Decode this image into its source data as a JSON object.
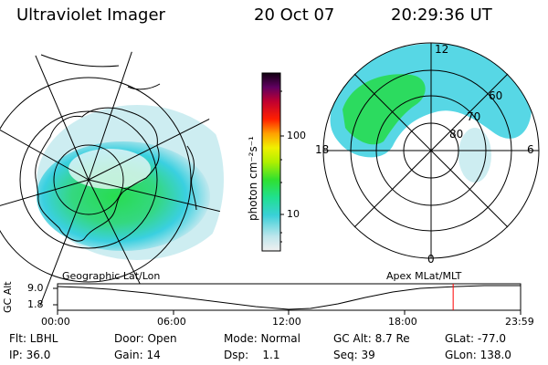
{
  "header": {
    "title": "Ultraviolet Imager",
    "date": "20 Oct 07",
    "time": "20:29:36 UT"
  },
  "colorbar": {
    "label": "photon cm⁻²s⁻¹",
    "ticks": [
      "100",
      "10"
    ]
  },
  "left_panel": {
    "caption": "Geographic Lat/Lon"
  },
  "right_panel": {
    "caption": "Apex MLat/MLT",
    "mlt_labels": {
      "top": "12",
      "bottom": "0",
      "left": "18",
      "right": "6"
    },
    "lat_labels": [
      "60",
      "70",
      "80"
    ]
  },
  "timeline": {
    "ylabel": "GC Alt",
    "y_ticks": [
      "9.0",
      "1.8"
    ],
    "x_ticks": [
      "00:00",
      "06:00",
      "12:00",
      "18:00",
      "23:59"
    ],
    "marker_time_hours": 20.49
  },
  "info": {
    "filter": "Flt: LBHL",
    "ip": "IP: 36.0",
    "door": "Door: Open",
    "gain": "Gain: 14",
    "mode": "Mode: Normal",
    "dsp": "Dsp:    1.1",
    "gc_alt": "GC Alt: 8.7 Re",
    "seq": "Seq: 39",
    "glat": "GLat: -77.0",
    "glon": "GLon: 138.0"
  },
  "colors": {
    "background": "#ffffff",
    "line": "#000000",
    "marker": "#ff0000",
    "aurora_main": "#28dc50",
    "aurora_edge": "#3ad0e0",
    "aurora_faint": "#c0e8ee"
  }
}
